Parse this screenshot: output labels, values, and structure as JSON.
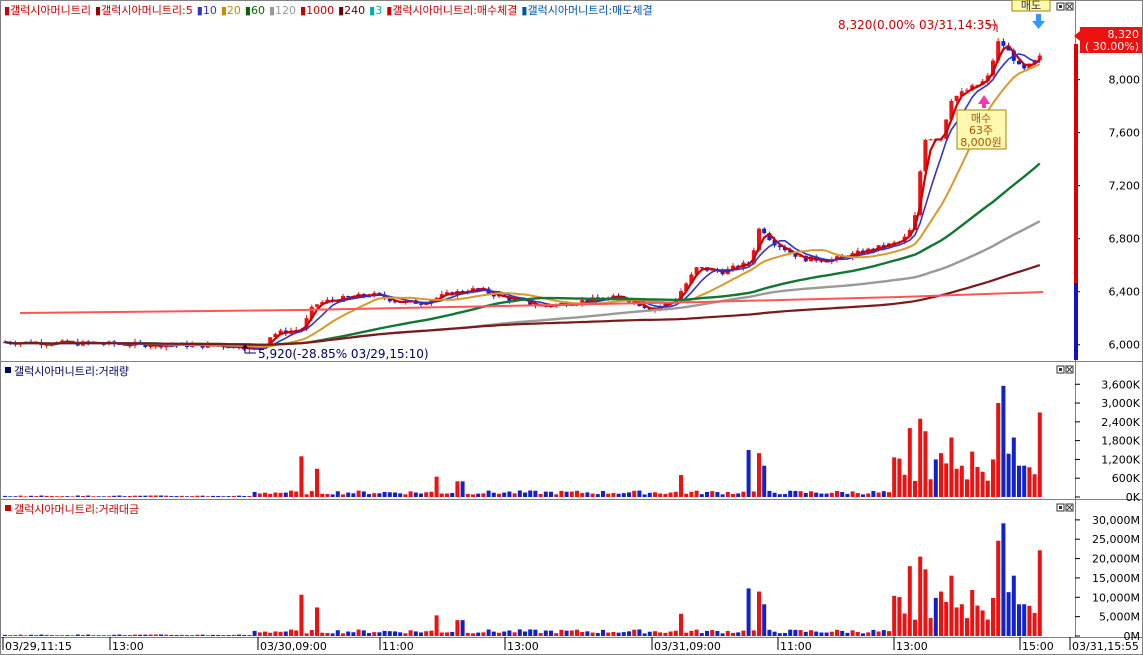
{
  "panels": {
    "price": {
      "legend": [
        {
          "text": "갤럭시아머니트리",
          "color": "#cc0000",
          "marker": "#cc0000"
        },
        {
          "text": "갤럭시아머니트리:5",
          "color": "#cc0000",
          "marker": "#990000"
        },
        {
          "text": "10",
          "color": "#3333cc",
          "marker": "#3333cc"
        },
        {
          "text": "20",
          "color": "#cc8800",
          "marker": "#cc8800"
        },
        {
          "text": "60",
          "color": "#006600",
          "marker": "#006600"
        },
        {
          "text": "120",
          "color": "#999999",
          "marker": "#999999"
        },
        {
          "text": "1000",
          "color": "#cc0000",
          "marker": "#cc0000"
        },
        {
          "text": "240",
          "color": "#660000",
          "marker": "#660000"
        },
        {
          "text": "3",
          "color": "#00aaaa",
          "marker": "#00aaaa"
        },
        {
          "text": "갤럭시아머니트리:매수체결",
          "color": "#cc0000",
          "marker": "#cc0000"
        },
        {
          "text": "갤럭시아머니트리:매도체결",
          "color": "#0055aa",
          "marker": "#0055aa"
        }
      ],
      "high_label": "8,320(0.00% 03/31,14:35)",
      "low_label": "5,920(-28.85% 03/29,15:10)",
      "last_price": "8,320",
      "last_change": "( 30.00%)",
      "buy_marker": {
        "lines": [
          "매수",
          "63주",
          "8,000원"
        ]
      },
      "sell_marker": {
        "text": "매도"
      }
    },
    "volume": {
      "title": "갤럭시아머니트리:거래량",
      "color": "#000066"
    },
    "amount": {
      "title": "갤럭시아머니트리:거래대금",
      "color": "#cc0000"
    }
  },
  "chart_data": [
    {
      "type": "candlestick",
      "title": "갤럭시아머니트리",
      "yticks": [
        "6,000",
        "6,400",
        "6,800",
        "7,200",
        "7,600",
        "8,000"
      ],
      "ylim": [
        5900,
        8450
      ],
      "high": 8320,
      "low": 5920,
      "moving_average_periods": [
        5,
        10,
        20,
        60,
        120,
        240,
        1000
      ]
    },
    {
      "type": "bar",
      "title": "갤럭시아머니트리:거래량",
      "yticks": [
        "0K",
        "600K",
        "1,200K",
        "1,800K",
        "2,400K",
        "3,000K",
        "3,600K"
      ],
      "ylim": [
        0,
        3800
      ]
    },
    {
      "type": "bar",
      "title": "갤럭시아머니트리:거래대금",
      "yticks": [
        "0M",
        "5,000M",
        "10,000M",
        "15,000M",
        "20,000M",
        "25,000M",
        "30,000M"
      ],
      "ylim": [
        0,
        31000
      ]
    }
  ],
  "xaxis": {
    "ticks": [
      "03/29,11:15",
      "13:00",
      "03/30,09:00",
      "11:00",
      "13:00",
      "03/31,09:00",
      "11:00",
      "13:00",
      "15:00",
      "03/31,15:55"
    ]
  }
}
